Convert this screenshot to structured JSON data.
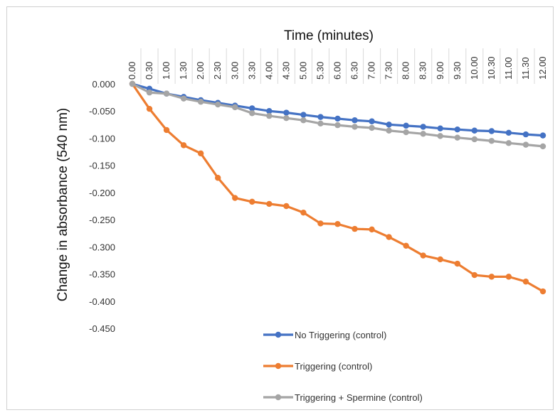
{
  "chart_data": {
    "type": "line",
    "title": "",
    "xlabel": "Time (minutes)",
    "ylabel": "Change in absorbance (540 nm)",
    "x_axis_position": "top",
    "categories": [
      "0.00",
      "0.30",
      "1.00",
      "1.30",
      "2.00",
      "2.30",
      "3.00",
      "3.30",
      "4.00",
      "4.30",
      "5.00",
      "5.30",
      "6.00",
      "6.30",
      "7.00",
      "7.30",
      "8.00",
      "8.30",
      "9.00",
      "9.30",
      "10.00",
      "10.30",
      "11.00",
      "11.30",
      "12.00"
    ],
    "y_ticks": [
      "0.000",
      "-0.050",
      "-0.100",
      "-0.150",
      "-0.200",
      "-0.250",
      "-0.300",
      "-0.350",
      "-0.400",
      "-0.450"
    ],
    "ylim": [
      -0.45,
      0
    ],
    "grid": "vertical",
    "legend_position": "bottom",
    "series": [
      {
        "name": "No Triggering (control)",
        "color": "#4472C4",
        "values": [
          0.0,
          -0.009,
          -0.018,
          -0.024,
          -0.03,
          -0.035,
          -0.04,
          -0.045,
          -0.05,
          -0.053,
          -0.057,
          -0.061,
          -0.064,
          -0.067,
          -0.069,
          -0.075,
          -0.077,
          -0.079,
          -0.082,
          -0.084,
          -0.086,
          -0.087,
          -0.09,
          -0.093,
          -0.095
        ]
      },
      {
        "name": "Triggering (control)",
        "color": "#ED7D31",
        "values": [
          0.0,
          -0.046,
          -0.085,
          -0.113,
          -0.128,
          -0.173,
          -0.21,
          -0.217,
          -0.221,
          -0.225,
          -0.237,
          -0.257,
          -0.258,
          -0.267,
          -0.268,
          -0.282,
          -0.298,
          -0.316,
          -0.323,
          -0.331,
          -0.352,
          -0.355,
          -0.355,
          -0.364,
          -0.382
        ]
      },
      {
        "name": "Triggering + Spermine (control)",
        "color": "#A5A5A5",
        "values": [
          0.0,
          -0.016,
          -0.018,
          -0.027,
          -0.033,
          -0.038,
          -0.043,
          -0.054,
          -0.059,
          -0.063,
          -0.067,
          -0.073,
          -0.076,
          -0.079,
          -0.081,
          -0.086,
          -0.089,
          -0.092,
          -0.096,
          -0.099,
          -0.102,
          -0.105,
          -0.109,
          -0.112,
          -0.115
        ]
      }
    ]
  }
}
